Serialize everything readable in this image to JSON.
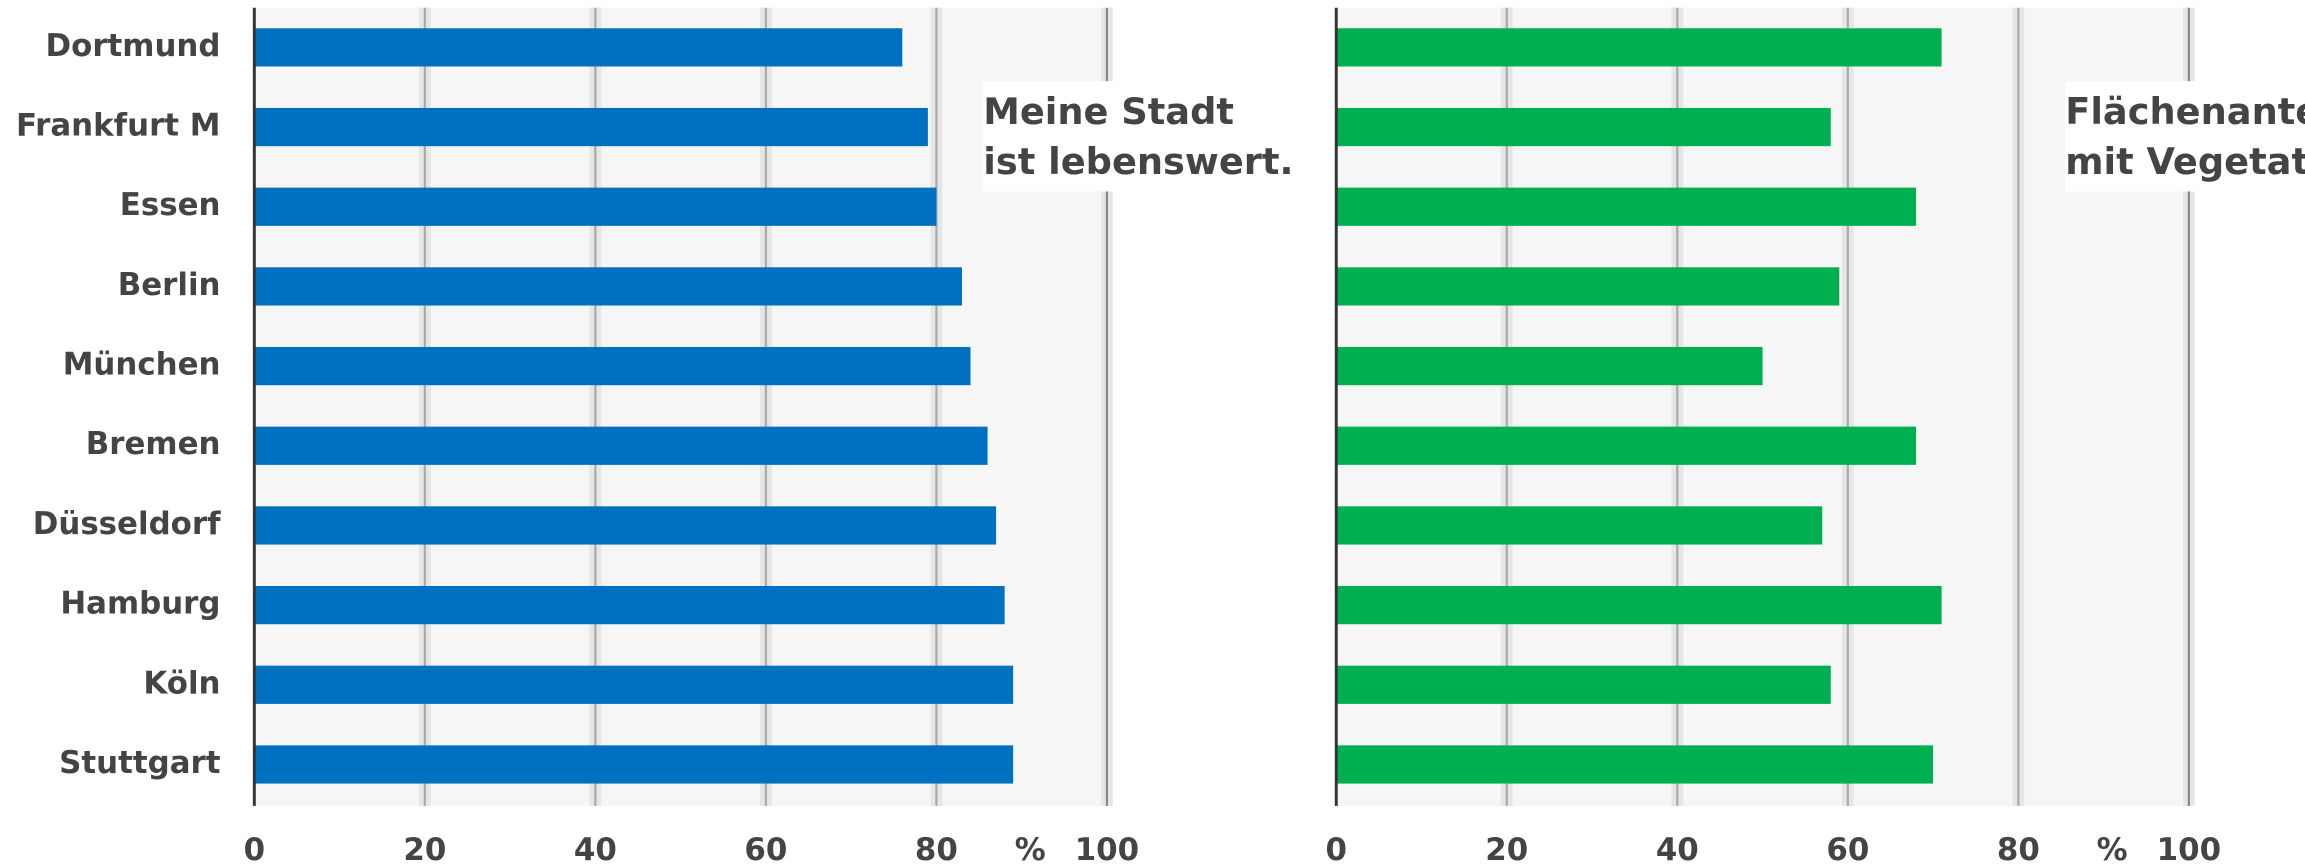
{
  "chart_data": [
    {
      "type": "bar",
      "orientation": "horizontal",
      "title": [
        "Meine Stadt",
        "ist lebenswert."
      ],
      "categories": [
        "Dortmund",
        "Frankfurt M",
        "Essen",
        "Berlin",
        "München",
        "Bremen",
        "Düsseldorf",
        "Hamburg",
        "Köln",
        "Stuttgart"
      ],
      "values": [
        76,
        79,
        80,
        83,
        84,
        86,
        87,
        88,
        89,
        89
      ],
      "color": "#0070c0",
      "xlim": [
        0,
        100
      ],
      "xticks": [
        0,
        20,
        40,
        60,
        80,
        100
      ],
      "xlabel": "%",
      "grid": true
    },
    {
      "type": "bar",
      "orientation": "horizontal",
      "title": [
        "Flächenanteil",
        "mit Vegetation"
      ],
      "values": [
        71,
        58,
        68,
        59,
        50,
        68,
        57,
        71,
        58,
        70
      ],
      "color": "#00b050",
      "xlim": [
        0,
        100
      ],
      "xticks": [
        0,
        20,
        40,
        60,
        80,
        100
      ],
      "xlabel": "%",
      "grid": true
    }
  ]
}
